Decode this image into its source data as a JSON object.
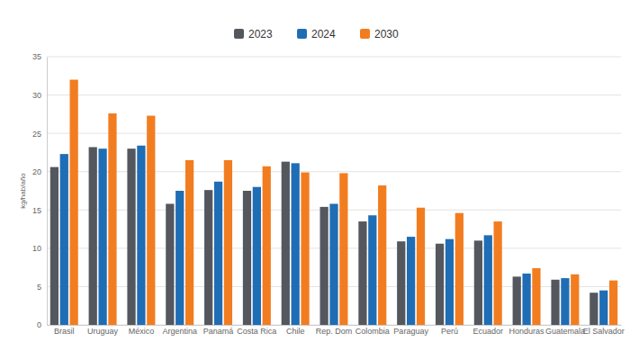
{
  "chart_data": {
    "type": "bar",
    "y_label": "kg/hab/año",
    "categories": [
      "Brasil",
      "Uruguay",
      "México",
      "Argentina",
      "Panamá",
      "Costa Rica",
      "Chile",
      "Rep. Dom",
      "Colombia",
      "Paraguay",
      "Perú",
      "Ecuador",
      "Honduras",
      "Guatemala",
      "El Salvador"
    ],
    "series": [
      {
        "name": "2023",
        "color": "#54585e",
        "values": [
          20.6,
          23.2,
          23.0,
          15.8,
          17.6,
          17.5,
          21.3,
          15.4,
          13.5,
          10.9,
          10.6,
          11.0,
          6.3,
          5.9,
          4.2
        ]
      },
      {
        "name": "2024",
        "color": "#1f6db5",
        "values": [
          22.3,
          23.0,
          23.4,
          17.5,
          18.7,
          18.0,
          21.1,
          15.8,
          14.3,
          11.5,
          11.2,
          11.7,
          6.7,
          6.1,
          4.5
        ]
      },
      {
        "name": "2030",
        "color": "#f27d20",
        "values": [
          32.0,
          27.6,
          27.3,
          21.5,
          21.5,
          20.7,
          19.9,
          19.8,
          18.2,
          15.3,
          14.6,
          13.5,
          7.4,
          6.6,
          5.8
        ]
      }
    ],
    "ylim": [
      0,
      35
    ],
    "yticks": [
      0,
      5,
      10,
      15,
      20,
      25,
      30,
      35
    ],
    "grid": true,
    "legend": "top"
  }
}
